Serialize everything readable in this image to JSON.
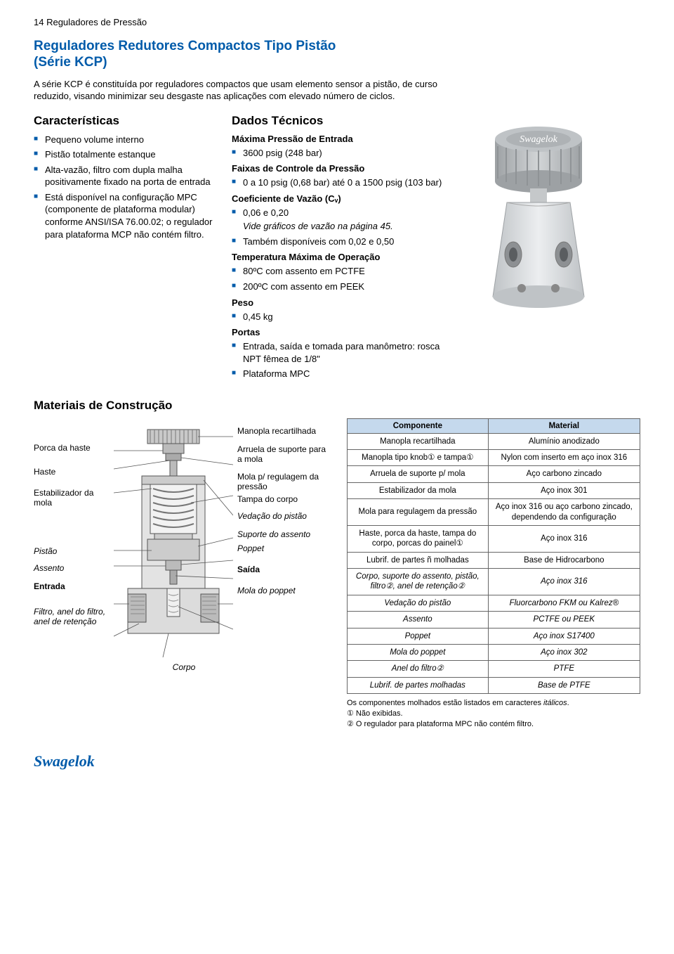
{
  "pageHeader": "14     Reguladores de Pressão",
  "title1": "Reguladores Redutores Compactos Tipo Pistão",
  "title2": "(Série KCP)",
  "intro": "A série KCP é constituída por reguladores compactos que usam elemento sensor a pistão, de curso reduzido, visando minimizar seu desgaste nas aplicações com elevado número de ciclos.",
  "characteristics": {
    "heading": "Características",
    "items": [
      "Pequeno volume interno",
      "Pistão totalmente estanque",
      "Alta-vazão, filtro com dupla malha positivamente fixado na porta de entrada",
      "Está disponível na configuração MPC (componente de plataforma modular) conforme ANSI/ISA 76.00.02; o regulador para plataforma MCP não contém filtro."
    ]
  },
  "techData": {
    "heading": "Dados Técnicos",
    "maxInlet": {
      "label": "Máxima Pressão de Entrada",
      "value": "3600 psig (248 bar)"
    },
    "controlRange": {
      "label": "Faixas de Controle da Pressão",
      "value": "0 a 10 psig (0,68 bar) até 0 a 1500 psig (103 bar)"
    },
    "flowCoef": {
      "label": "Coeficiente de Vazão (Cᵥ)",
      "value": "0,06 e 0,20",
      "note": "Vide gráficos de vazão na página 45.",
      "extra": "Também disponíveis com 0,02 e 0,50"
    },
    "maxTemp": {
      "label": "Temperatura Máxima de Operação",
      "v1": "80ºC com assento em PCTFE",
      "v2": "200ºC com assento em PEEK"
    },
    "weight": {
      "label": "Peso",
      "value": "0,45 kg"
    },
    "ports": {
      "label": "Portas",
      "v1": "Entrada, saída e tomada para manômetro: rosca NPT fêmea de 1/8\"",
      "v2": "Plataforma MPC"
    }
  },
  "materialsHeading": "Materiais de Construção",
  "diagramLabels": {
    "left": [
      "Porca da haste",
      "Haste",
      "Estabilizador da mola",
      "Pistão",
      "Assento",
      "Entrada",
      "Filtro, anel do filtro, anel de retenção"
    ],
    "bottomLeft": "Corpo",
    "right": [
      "Manopla recartilhada",
      "Arruela de suporte para a mola",
      "Mola p/ regulagem da pressão",
      "Tampa do corpo",
      "Vedação do pistão",
      "Suporte do assento",
      "Poppet",
      "Saída",
      "Mola do poppet"
    ]
  },
  "tableHeaders": {
    "component": "Componente",
    "material": "Material"
  },
  "tableRows": [
    {
      "c": "Manopla recartilhada",
      "m": "Alumínio anodizado"
    },
    {
      "c": "Manopla tipo knob① e tampa①",
      "m": "Nylon com inserto em aço inox 316"
    },
    {
      "c": "Arruela de suporte p/ mola",
      "m": "Aço carbono zincado"
    },
    {
      "c": "Estabilizador da mola",
      "m": "Aço inox 301"
    },
    {
      "c": "Mola para regulagem da pressão",
      "m": "Aço inox 316 ou aço carbono zincado, dependendo da configuração"
    },
    {
      "c": "Haste, porca da haste, tampa do corpo, porcas do painel①",
      "m": "Aço inox 316"
    },
    {
      "c": "Lubrif. de partes ñ molhadas",
      "m": "Base de Hidrocarbono"
    },
    {
      "c": "Corpo, suporte do assento, pistão, filtro②, anel de retenção②",
      "m": "Aço inox 316",
      "ital": true
    },
    {
      "c": "Vedação do pistão",
      "m": "Fluorcarbono FKM ou Kalrez®",
      "ital": true
    },
    {
      "c": "Assento",
      "m": "PCTFE ou PEEK",
      "ital": true
    },
    {
      "c": "Poppet",
      "m": "Aço inox S17400",
      "ital": true
    },
    {
      "c": "Mola do poppet",
      "m": "Aço inox 302",
      "ital": true
    },
    {
      "c": "Anel do filtro②",
      "m": "PTFE",
      "ital": true
    },
    {
      "c": "Lubrif. de partes molhadas",
      "m": "Base de PTFE",
      "ital": true
    }
  ],
  "footnotes": {
    "lineIntro": "Os componentes molhados estão listados em caracteres itálicos.",
    "f1": "① Não exibidas.",
    "f2": "② O regulador para plataforma MPC não contém filtro."
  },
  "logoText": "Swagelok",
  "colors": {
    "brandBlue": "#005baa",
    "tableHeaderBg": "#c5d9ed",
    "tableBorder": "#666666",
    "productGray": "#bfc3c6",
    "productGrayDark": "#9da1a4",
    "diagramFill": "#d9d9d9",
    "diagramStroke": "#555555"
  }
}
